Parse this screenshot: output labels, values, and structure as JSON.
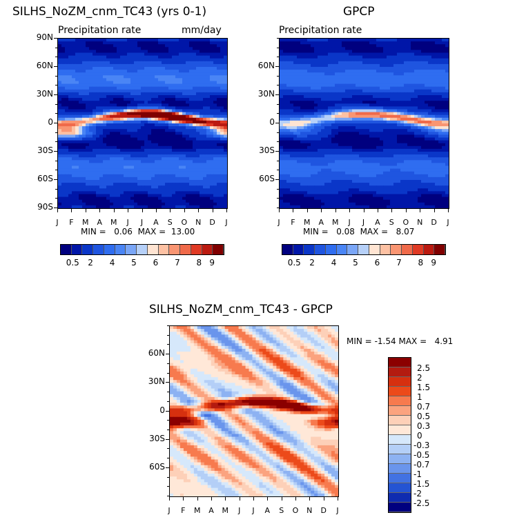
{
  "chart_data": [
    {
      "type": "heatmap",
      "title": "SILHS_NoZM_cnm_TC43 (yrs 0-1)",
      "subtitle": "Precipitation rate",
      "units": "mm/day",
      "x_ticks": [
        "J",
        "F",
        "M",
        "A",
        "M",
        "J",
        "J",
        "A",
        "S",
        "O",
        "N",
        "D",
        "J"
      ],
      "y_ticks": [
        "90N",
        "60N",
        "30N",
        "0",
        "30S",
        "60S",
        "90S"
      ],
      "min_label": "MIN =",
      "min_value": "0.06",
      "max_label": "MAX =",
      "max_value": "13.00",
      "colorbar_labels": [
        "0.5",
        "2",
        "4",
        "5",
        "6",
        "7",
        "8",
        "9"
      ],
      "itcz_peak_mm_day": 13.0
    },
    {
      "type": "heatmap",
      "title": "GPCP",
      "subtitle": "Precipitation rate",
      "x_ticks": [
        "J",
        "F",
        "M",
        "A",
        "M",
        "J",
        "J",
        "A",
        "S",
        "O",
        "N",
        "D",
        "J"
      ],
      "y_ticks": [
        "60N",
        "30N",
        "0",
        "30S",
        "60S"
      ],
      "min_label": "MIN =",
      "min_value": "0.08",
      "max_label": "MAX =",
      "max_value": "8.07",
      "colorbar_labels": [
        "0.5",
        "2",
        "4",
        "5",
        "6",
        "7",
        "8",
        "9"
      ],
      "itcz_peak_mm_day": 8.07
    },
    {
      "type": "heatmap",
      "title": "SILHS_NoZM_cnm_TC43 - GPCP",
      "x_ticks": [
        "J",
        "F",
        "M",
        "A",
        "M",
        "J",
        "J",
        "A",
        "S",
        "O",
        "N",
        "D",
        "J"
      ],
      "y_ticks": [
        "60N",
        "30N",
        "0",
        "30S",
        "60S"
      ],
      "min_label": "MIN =",
      "min_value": "-1.54",
      "max_label": "MAX =",
      "max_value": "4.91",
      "colorbar_labels": [
        "2.5",
        "2",
        "1.5",
        "1",
        "0.7",
        "0.5",
        "0.3",
        "0",
        "-0.3",
        "-0.5",
        "-0.7",
        "-1",
        "-1.5",
        "-2",
        "-2.5"
      ]
    }
  ],
  "palette": {
    "abs": [
      "#00007f",
      "#0016a8",
      "#0a36c8",
      "#1f55e0",
      "#2f6df0",
      "#4a85f5",
      "#7aa6f7",
      "#b6d0f8",
      "#ffe4d2",
      "#fdc1a3",
      "#f99572",
      "#f06a4a",
      "#e03a24",
      "#bb1a10",
      "#800000"
    ],
    "diff": [
      "#8b0000",
      "#b31b10",
      "#d6300f",
      "#ec4a1a",
      "#f77a4e",
      "#fba37f",
      "#fdd0b8",
      "#ffe8d8",
      "#d6e8fb",
      "#b4cff7",
      "#8db2f2",
      "#6a95ec",
      "#4272e2",
      "#2454d3",
      "#0f2cb0",
      "#00007f"
    ]
  }
}
